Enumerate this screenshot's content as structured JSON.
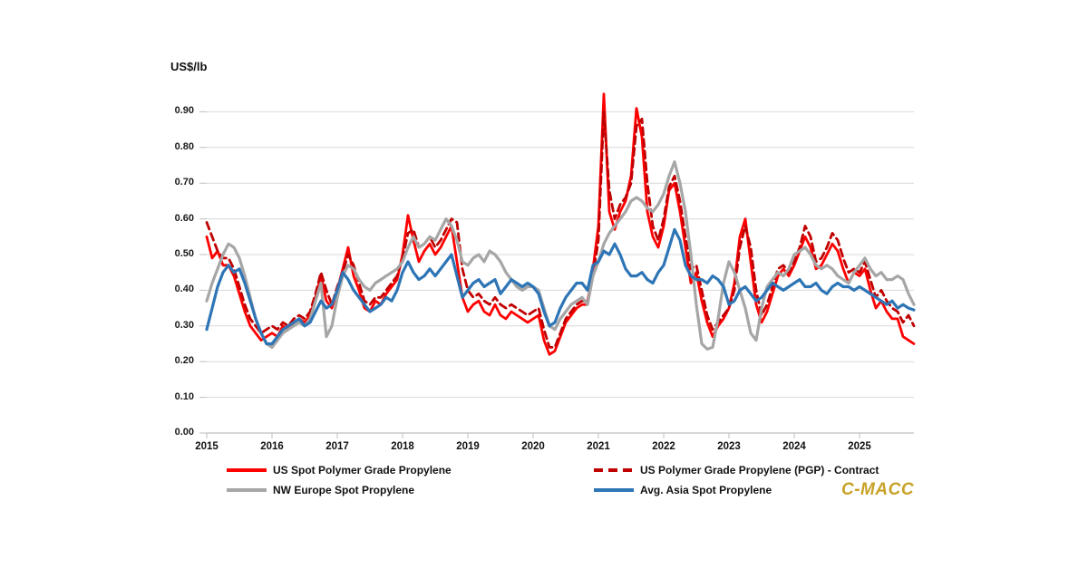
{
  "chart": {
    "ylabel": "US$/lb",
    "watermark": "C-MACC",
    "colors": {
      "grid": "#D9D9D9",
      "axis": "#BFBFBF",
      "tick_text": "#1A1A1A",
      "watermark": "#C8A126"
    }
  },
  "chart_data": {
    "type": "line",
    "title": "",
    "xlabel": "",
    "ylabel": "US$/lb",
    "grid": "horizontal",
    "legend_position": "bottom",
    "x_freq": "monthly",
    "x_start": "2015-01",
    "x_end": "2025-11",
    "x_tick_labels": [
      "2015",
      "2016",
      "2017",
      "2018",
      "2019",
      "2020",
      "2021",
      "2022",
      "2023",
      "2024",
      "2025"
    ],
    "y_ticks": [
      0.0,
      0.1,
      0.2,
      0.3,
      0.4,
      0.5,
      0.6,
      0.7,
      0.8,
      0.9
    ],
    "ylim": [
      0,
      0.975
    ],
    "series": [
      {
        "name": "US Spot Polymer Grade Propylene",
        "color": "#FF0000",
        "dash": null,
        "width": 2.8,
        "values": [
          0.55,
          0.49,
          0.51,
          0.47,
          0.47,
          0.44,
          0.39,
          0.34,
          0.3,
          0.28,
          0.26,
          0.27,
          0.28,
          0.27,
          0.3,
          0.29,
          0.31,
          0.32,
          0.31,
          0.33,
          0.38,
          0.44,
          0.37,
          0.35,
          0.4,
          0.46,
          0.52,
          0.44,
          0.4,
          0.35,
          0.34,
          0.37,
          0.36,
          0.39,
          0.41,
          0.43,
          0.5,
          0.61,
          0.54,
          0.48,
          0.51,
          0.53,
          0.5,
          0.52,
          0.55,
          0.58,
          0.48,
          0.38,
          0.34,
          0.36,
          0.37,
          0.34,
          0.33,
          0.36,
          0.33,
          0.32,
          0.34,
          0.33,
          0.32,
          0.31,
          0.32,
          0.33,
          0.26,
          0.22,
          0.23,
          0.27,
          0.31,
          0.33,
          0.35,
          0.36,
          0.36,
          0.46,
          0.58,
          0.95,
          0.62,
          0.57,
          0.62,
          0.65,
          0.72,
          0.91,
          0.83,
          0.62,
          0.55,
          0.52,
          0.58,
          0.68,
          0.7,
          0.62,
          0.52,
          0.42,
          0.45,
          0.37,
          0.31,
          0.27,
          0.3,
          0.32,
          0.35,
          0.42,
          0.55,
          0.6,
          0.48,
          0.36,
          0.31,
          0.34,
          0.39,
          0.44,
          0.46,
          0.44,
          0.47,
          0.51,
          0.55,
          0.52,
          0.46,
          0.47,
          0.5,
          0.53,
          0.51,
          0.46,
          0.42,
          0.45,
          0.44,
          0.46,
          0.4,
          0.35,
          0.37,
          0.34,
          0.32,
          0.32,
          0.27,
          0.26,
          0.25
        ]
      },
      {
        "name": "US Polymer Grade Propylene (PGP) - Contract",
        "color": "#C00000",
        "dash": "8 5",
        "width": 2.8,
        "values": [
          0.59,
          0.55,
          0.51,
          0.49,
          0.49,
          0.46,
          0.41,
          0.36,
          0.32,
          0.3,
          0.28,
          0.29,
          0.3,
          0.29,
          0.31,
          0.3,
          0.32,
          0.33,
          0.32,
          0.34,
          0.39,
          0.45,
          0.4,
          0.36,
          0.41,
          0.45,
          0.5,
          0.47,
          0.42,
          0.37,
          0.36,
          0.38,
          0.38,
          0.4,
          0.42,
          0.44,
          0.49,
          0.56,
          0.57,
          0.52,
          0.53,
          0.55,
          0.52,
          0.54,
          0.57,
          0.6,
          0.59,
          0.46,
          0.4,
          0.38,
          0.39,
          0.37,
          0.36,
          0.38,
          0.36,
          0.35,
          0.36,
          0.35,
          0.34,
          0.33,
          0.34,
          0.35,
          0.29,
          0.24,
          0.24,
          0.28,
          0.32,
          0.34,
          0.36,
          0.37,
          0.37,
          0.44,
          0.54,
          0.9,
          0.68,
          0.6,
          0.64,
          0.66,
          0.7,
          0.86,
          0.88,
          0.7,
          0.58,
          0.54,
          0.6,
          0.69,
          0.72,
          0.65,
          0.55,
          0.46,
          0.47,
          0.4,
          0.33,
          0.29,
          0.31,
          0.33,
          0.35,
          0.4,
          0.52,
          0.58,
          0.52,
          0.4,
          0.33,
          0.36,
          0.41,
          0.46,
          0.47,
          0.45,
          0.48,
          0.52,
          0.58,
          0.55,
          0.48,
          0.49,
          0.52,
          0.56,
          0.54,
          0.49,
          0.45,
          0.46,
          0.45,
          0.48,
          0.43,
          0.38,
          0.4,
          0.37,
          0.35,
          0.34,
          0.31,
          0.33,
          0.3
        ]
      },
      {
        "name": "NW Europe Spot Propylene",
        "color": "#A6A6A6",
        "dash": null,
        "width": 3.2,
        "values": [
          0.37,
          0.42,
          0.46,
          0.5,
          0.53,
          0.52,
          0.49,
          0.44,
          0.38,
          0.32,
          0.28,
          0.25,
          0.24,
          0.26,
          0.28,
          0.29,
          0.3,
          0.31,
          0.3,
          0.32,
          0.37,
          0.42,
          0.27,
          0.3,
          0.38,
          0.44,
          0.47,
          0.46,
          0.43,
          0.41,
          0.4,
          0.42,
          0.43,
          0.44,
          0.45,
          0.46,
          0.48,
          0.52,
          0.55,
          0.52,
          0.53,
          0.55,
          0.54,
          0.57,
          0.6,
          0.58,
          0.54,
          0.48,
          0.47,
          0.49,
          0.5,
          0.48,
          0.51,
          0.5,
          0.48,
          0.45,
          0.43,
          0.41,
          0.4,
          0.41,
          0.41,
          0.4,
          0.35,
          0.3,
          0.29,
          0.32,
          0.34,
          0.36,
          0.37,
          0.38,
          0.36,
          0.44,
          0.48,
          0.53,
          0.56,
          0.58,
          0.6,
          0.62,
          0.65,
          0.66,
          0.65,
          0.63,
          0.62,
          0.64,
          0.67,
          0.72,
          0.76,
          0.7,
          0.62,
          0.5,
          0.36,
          0.25,
          0.235,
          0.24,
          0.32,
          0.42,
          0.48,
          0.45,
          0.4,
          0.35,
          0.28,
          0.26,
          0.35,
          0.41,
          0.43,
          0.45,
          0.44,
          0.46,
          0.5,
          0.51,
          0.52,
          0.5,
          0.47,
          0.46,
          0.47,
          0.46,
          0.44,
          0.43,
          0.42,
          0.45,
          0.47,
          0.49,
          0.46,
          0.44,
          0.45,
          0.43,
          0.43,
          0.44,
          0.43,
          0.39,
          0.36
        ]
      },
      {
        "name": "Avg. Asia Spot Propylene",
        "color": "#2E75B6",
        "dash": null,
        "width": 3.2,
        "values": [
          0.29,
          0.35,
          0.41,
          0.45,
          0.47,
          0.45,
          0.46,
          0.42,
          0.37,
          0.32,
          0.28,
          0.25,
          0.25,
          0.27,
          0.29,
          0.3,
          0.31,
          0.32,
          0.3,
          0.31,
          0.34,
          0.37,
          0.35,
          0.36,
          0.4,
          0.45,
          0.43,
          0.4,
          0.38,
          0.36,
          0.34,
          0.35,
          0.36,
          0.38,
          0.37,
          0.4,
          0.45,
          0.48,
          0.45,
          0.43,
          0.44,
          0.46,
          0.44,
          0.46,
          0.48,
          0.5,
          0.44,
          0.38,
          0.4,
          0.42,
          0.43,
          0.41,
          0.42,
          0.43,
          0.39,
          0.41,
          0.43,
          0.42,
          0.41,
          0.42,
          0.41,
          0.39,
          0.34,
          0.3,
          0.31,
          0.35,
          0.38,
          0.4,
          0.42,
          0.42,
          0.4,
          0.47,
          0.48,
          0.51,
          0.5,
          0.53,
          0.5,
          0.46,
          0.44,
          0.44,
          0.45,
          0.43,
          0.42,
          0.45,
          0.47,
          0.52,
          0.57,
          0.54,
          0.47,
          0.44,
          0.43,
          0.43,
          0.42,
          0.44,
          0.43,
          0.41,
          0.36,
          0.37,
          0.4,
          0.41,
          0.39,
          0.37,
          0.38,
          0.4,
          0.42,
          0.41,
          0.4,
          0.41,
          0.42,
          0.43,
          0.41,
          0.41,
          0.42,
          0.4,
          0.39,
          0.41,
          0.42,
          0.41,
          0.41,
          0.4,
          0.41,
          0.4,
          0.39,
          0.38,
          0.37,
          0.36,
          0.37,
          0.35,
          0.36,
          0.35,
          0.345
        ]
      }
    ]
  }
}
